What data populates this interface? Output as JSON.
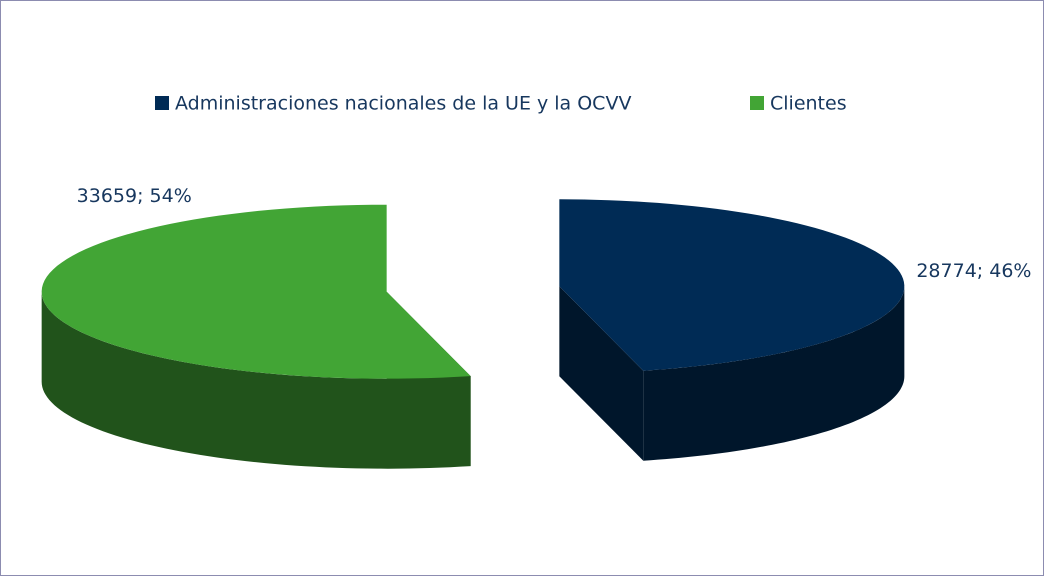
{
  "chart_data": {
    "type": "pie3d",
    "categories": [
      "Administraciones nacionales de la UE y la OCVV",
      "Clientes"
    ],
    "values": [
      28774,
      33659
    ],
    "value_labels": [
      "28774; 46%",
      "33659; 54%"
    ],
    "colors": [
      "#002b55",
      "#42a535"
    ],
    "legend": "top"
  }
}
